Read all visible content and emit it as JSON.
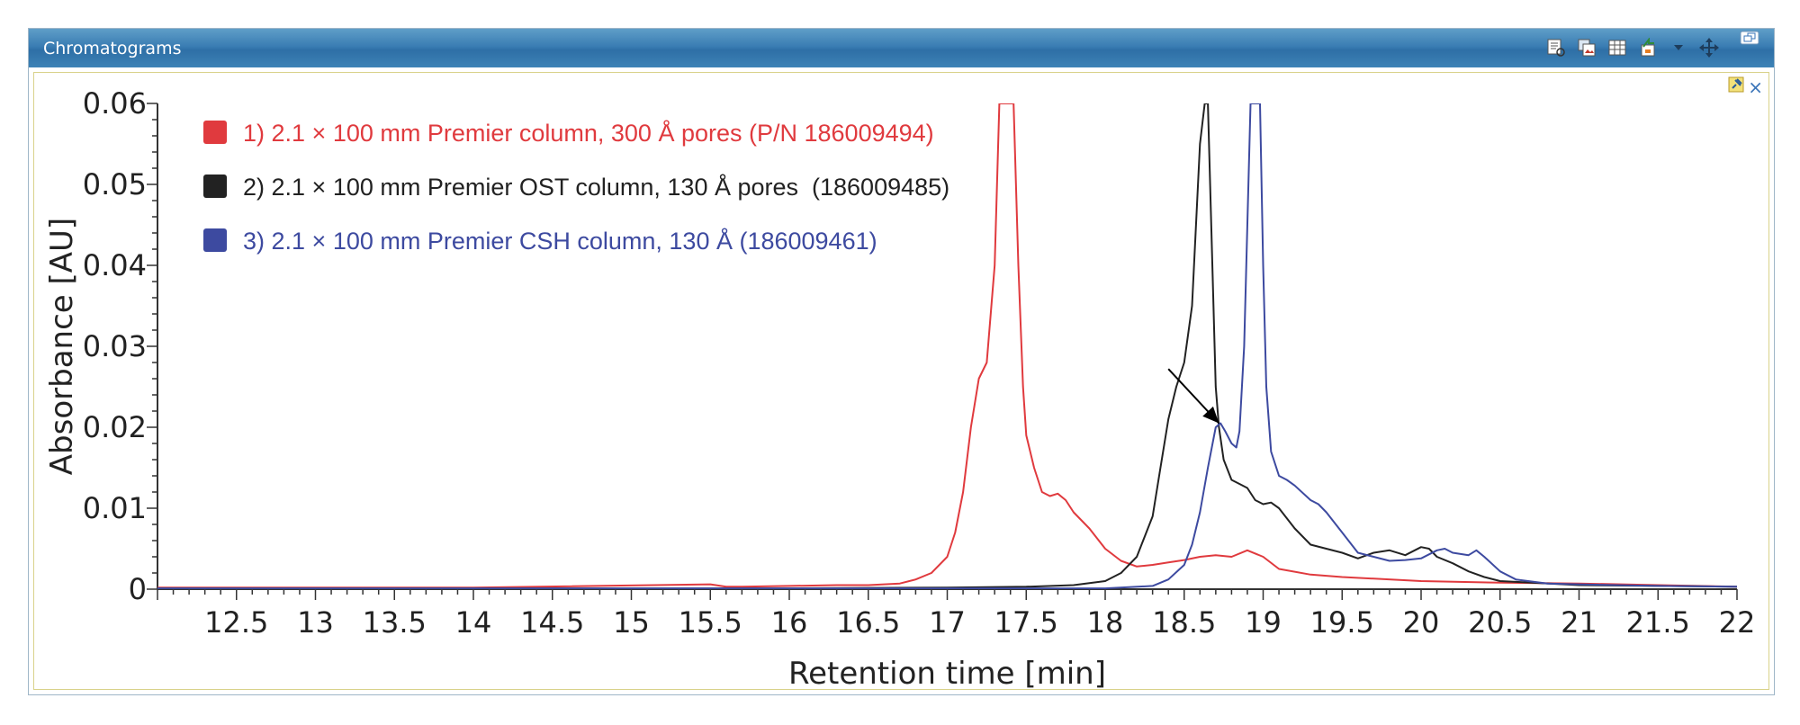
{
  "window": {
    "title": "Chromatograms",
    "toolbar_icons": [
      "report-icon",
      "copy-image-icon",
      "table-icon",
      "export-icon",
      "dropdown-arrow-icon",
      "pan-move-icon"
    ],
    "restore_icon": "restore-window-icon",
    "pin_icon": "pin-icon",
    "close_glyph": "×"
  },
  "chart_data": {
    "type": "line",
    "xlabel": "Retention time [min]",
    "ylabel": "Absorbance [AU]",
    "xlim": [
      12,
      22
    ],
    "ylim": [
      0,
      0.06
    ],
    "xticks": [
      "12.5",
      "13",
      "13.5",
      "14",
      "14.5",
      "15",
      "15.5",
      "16",
      "16.5",
      "17",
      "17.5",
      "18",
      "18.5",
      "19",
      "19.5",
      "20",
      "20.5",
      "21",
      "21.5",
      "22"
    ],
    "yticks": [
      "0",
      "0.01",
      "0.02",
      "0.03",
      "0.04",
      "0.05",
      "0.06"
    ],
    "grid": false,
    "legend_position": "top-left",
    "series": [
      {
        "name": "1) 2.1 × 100 mm Premier column, 300 Å pores (P/N 186009494)",
        "color": "#e03a3e",
        "x": [
          12.0,
          14.0,
          15.5,
          15.6,
          15.7,
          16.0,
          16.3,
          16.5,
          16.7,
          16.8,
          16.9,
          17.0,
          17.05,
          17.1,
          17.15,
          17.2,
          17.25,
          17.3,
          17.33,
          17.35,
          17.38,
          17.42,
          17.45,
          17.48,
          17.5,
          17.55,
          17.6,
          17.65,
          17.7,
          17.75,
          17.8,
          17.9,
          18.0,
          18.1,
          18.2,
          18.3,
          18.4,
          18.5,
          18.6,
          18.7,
          18.8,
          18.9,
          19.0,
          19.1,
          19.3,
          19.5,
          20.0,
          20.5,
          21.0,
          21.5,
          22.0
        ],
        "y": [
          0.0002,
          0.0002,
          0.0006,
          0.0003,
          0.0003,
          0.0004,
          0.0005,
          0.0005,
          0.0007,
          0.0012,
          0.002,
          0.004,
          0.007,
          0.012,
          0.02,
          0.026,
          0.028,
          0.04,
          0.06,
          0.06,
          0.06,
          0.06,
          0.04,
          0.025,
          0.019,
          0.015,
          0.012,
          0.0115,
          0.0118,
          0.011,
          0.0095,
          0.0075,
          0.005,
          0.0035,
          0.0028,
          0.003,
          0.0033,
          0.0036,
          0.004,
          0.0042,
          0.004,
          0.0048,
          0.004,
          0.0025,
          0.0018,
          0.0015,
          0.001,
          0.0008,
          0.0007,
          0.0005,
          0.0003
        ]
      },
      {
        "name": "2) 2.1 × 100 mm Premier OST column, 130 Å pores  (186009485)",
        "color": "#222222",
        "x": [
          12.0,
          14.0,
          16.0,
          17.0,
          17.5,
          17.8,
          18.0,
          18.1,
          18.2,
          18.3,
          18.35,
          18.4,
          18.45,
          18.5,
          18.55,
          18.6,
          18.63,
          18.65,
          18.7,
          18.72,
          18.75,
          18.8,
          18.85,
          18.9,
          18.95,
          19.0,
          19.05,
          19.1,
          19.2,
          19.3,
          19.4,
          19.5,
          19.6,
          19.7,
          19.8,
          19.9,
          20.0,
          20.05,
          20.1,
          20.2,
          20.3,
          20.4,
          20.5,
          20.7,
          21.0,
          21.5,
          22.0
        ],
        "y": [
          0.0001,
          0.0001,
          0.0001,
          0.0002,
          0.0003,
          0.0005,
          0.001,
          0.002,
          0.004,
          0.009,
          0.015,
          0.021,
          0.025,
          0.028,
          0.035,
          0.055,
          0.06,
          0.06,
          0.025,
          0.02,
          0.016,
          0.0135,
          0.013,
          0.0125,
          0.011,
          0.0105,
          0.0107,
          0.01,
          0.0075,
          0.0055,
          0.005,
          0.0045,
          0.0038,
          0.0045,
          0.0048,
          0.0042,
          0.0052,
          0.005,
          0.004,
          0.0032,
          0.0022,
          0.0015,
          0.001,
          0.0008,
          0.0005,
          0.0004,
          0.0003
        ]
      },
      {
        "name": "3) 2.1 × 100 mm Premier CSH column, 130 Å (186009461)",
        "color": "#3d4aa0",
        "x": [
          12.0,
          16.0,
          18.0,
          18.3,
          18.4,
          18.5,
          18.55,
          18.6,
          18.65,
          18.7,
          18.73,
          18.76,
          18.8,
          18.83,
          18.85,
          18.88,
          18.92,
          18.95,
          18.98,
          19.0,
          19.02,
          19.05,
          19.1,
          19.15,
          19.2,
          19.3,
          19.35,
          19.4,
          19.5,
          19.6,
          19.7,
          19.8,
          19.9,
          20.0,
          20.1,
          20.15,
          20.2,
          20.3,
          20.35,
          20.4,
          20.5,
          20.6,
          20.8,
          21.0,
          21.5,
          22.0
        ],
        "y": [
          0.0001,
          0.0001,
          0.0001,
          0.0004,
          0.0012,
          0.003,
          0.0055,
          0.0095,
          0.015,
          0.02,
          0.0205,
          0.0195,
          0.018,
          0.0175,
          0.0195,
          0.03,
          0.06,
          0.06,
          0.06,
          0.04,
          0.025,
          0.017,
          0.014,
          0.0135,
          0.0128,
          0.011,
          0.0105,
          0.0095,
          0.007,
          0.0045,
          0.004,
          0.0035,
          0.0036,
          0.0038,
          0.0048,
          0.005,
          0.0045,
          0.0042,
          0.0048,
          0.004,
          0.0022,
          0.0012,
          0.0007,
          0.0006,
          0.0004,
          0.0003
        ]
      }
    ],
    "annotations": [
      {
        "type": "arrow",
        "from": [
          18.4,
          0.0272
        ],
        "to": [
          18.72,
          0.0205
        ]
      }
    ]
  }
}
